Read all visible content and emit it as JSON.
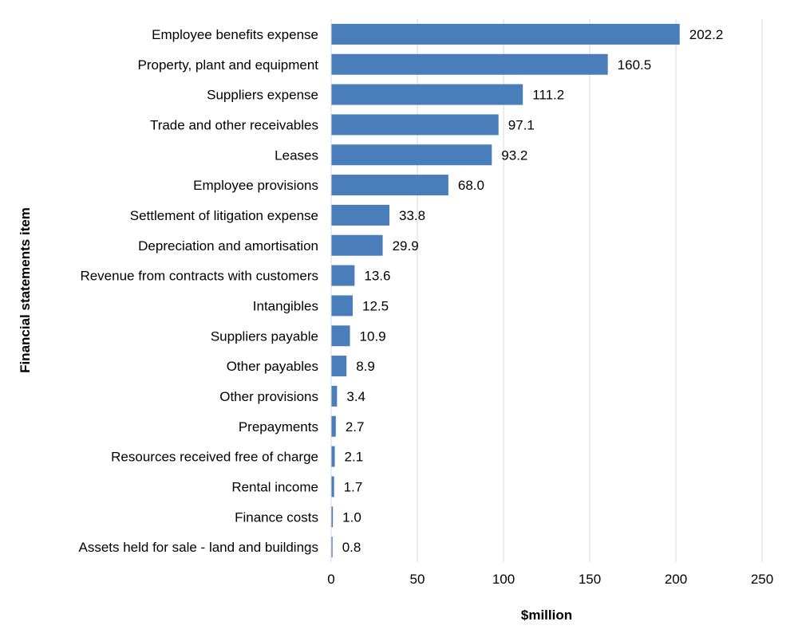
{
  "chart_data": {
    "type": "bar",
    "orientation": "horizontal",
    "categories": [
      "Employee benefits expense",
      "Property, plant and equipment",
      "Suppliers expense",
      "Trade and other receivables",
      "Leases",
      "Employee provisions",
      "Settlement of litigation expense",
      "Depreciation and amortisation",
      "Revenue from contracts with customers",
      "Intangibles",
      "Suppliers payable",
      "Other payables",
      "Other provisions",
      "Prepayments",
      "Resources received free of charge",
      "Rental income",
      "Finance costs",
      "Assets held for sale - land and buildings"
    ],
    "values": [
      202.2,
      160.5,
      111.2,
      97.1,
      93.2,
      68.0,
      33.8,
      29.9,
      13.6,
      12.5,
      10.9,
      8.9,
      3.4,
      2.7,
      2.1,
      1.7,
      1.0,
      0.8
    ],
    "value_labels": [
      "202.2",
      "160.5",
      "111.2",
      "97.1",
      "93.2",
      "68.0",
      "33.8",
      "29.9",
      "13.6",
      "12.5",
      "10.9",
      "8.9",
      "3.4",
      "2.7",
      "2.1",
      "1.7",
      "1.0",
      "0.8"
    ],
    "xlabel": "$million",
    "ylabel": "Financial statements item",
    "xlim": [
      0,
      250
    ],
    "xticks": [
      0,
      50,
      100,
      150,
      200,
      250
    ],
    "xtick_labels": [
      "0",
      "50",
      "100",
      "150",
      "200",
      "250"
    ],
    "grid": "vertical gridlines",
    "legend": "none",
    "bar_color": "#4a7ebb",
    "grid_color": "#d9d9d9"
  }
}
